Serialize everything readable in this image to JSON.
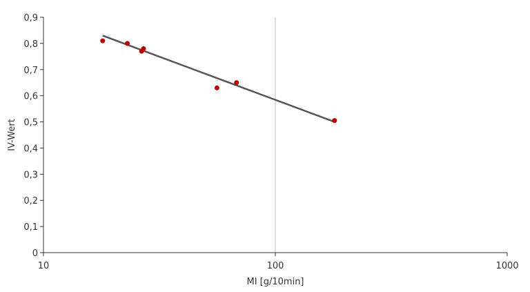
{
  "chart_data": {
    "type": "scatter",
    "title": "",
    "xlabel": "MI [g/10min]",
    "ylabel": "IV-Wert",
    "x_scale": "log",
    "xlim": [
      10,
      1000
    ],
    "ylim": [
      0,
      0.9
    ],
    "x_ticks": [
      {
        "value": 10,
        "label": "10"
      },
      {
        "value": 100,
        "label": "100"
      },
      {
        "value": 1000,
        "label": "1000"
      }
    ],
    "y_ticks": [
      {
        "value": 0,
        "label": "0"
      },
      {
        "value": 0.1,
        "label": "0,1"
      },
      {
        "value": 0.2,
        "label": "0,2"
      },
      {
        "value": 0.3,
        "label": "0,3"
      },
      {
        "value": 0.4,
        "label": "0,4"
      },
      {
        "value": 0.5,
        "label": "0,5"
      },
      {
        "value": 0.6,
        "label": "0,6"
      },
      {
        "value": 0.7,
        "label": "0,7"
      },
      {
        "value": 0.8,
        "label": "0,8"
      },
      {
        "value": 0.9,
        "label": "0,9"
      }
    ],
    "grid": "vertical at x=100",
    "legend": "none",
    "series": [
      {
        "points": [
          {
            "x": 18,
            "y": 0.81
          },
          {
            "x": 23,
            "y": 0.8
          },
          {
            "x": 26.5,
            "y": 0.77
          },
          {
            "x": 27,
            "y": 0.78
          },
          {
            "x": 56,
            "y": 0.63
          },
          {
            "x": 68,
            "y": 0.65
          },
          {
            "x": 180,
            "y": 0.505
          }
        ],
        "color": "#c00000"
      }
    ],
    "trendline": {
      "type": "logarithmic",
      "from": {
        "x": 18,
        "y": 0.83
      },
      "to": {
        "x": 180,
        "y": 0.5
      },
      "color": "#555555"
    }
  }
}
